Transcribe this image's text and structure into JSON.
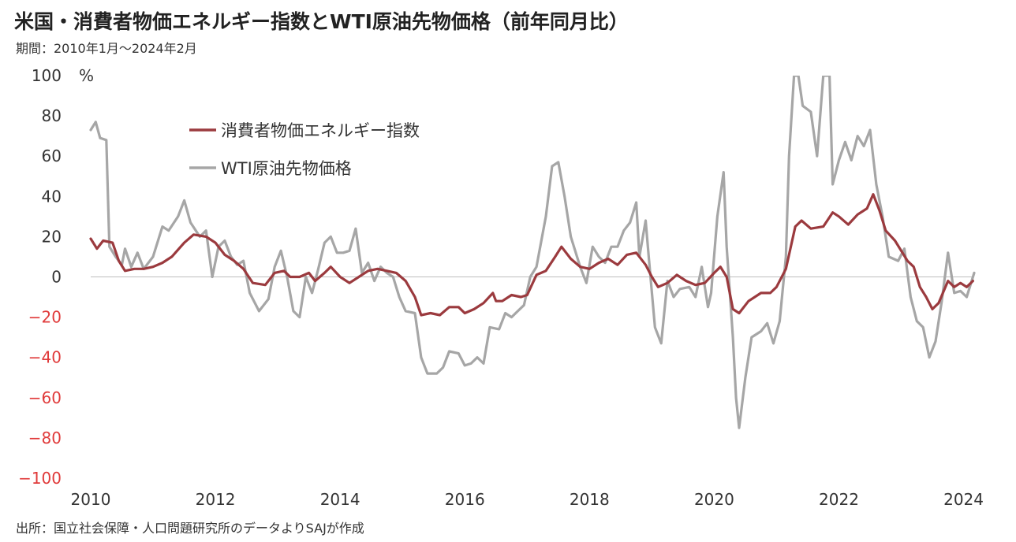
{
  "header": {
    "title": "米国・消費者物価エネルギー指数とWTI原油先物価格（前年同月比）",
    "subtitle": "期間：2010年1月～2024年2月"
  },
  "footer": {
    "source": "出所：国立社会保障・人口問題研究所のデータよりSAJが作成"
  },
  "colors": {
    "cpi_energy": "#9b3a3e",
    "wti": "#a6a6a6",
    "negative_tick": "#e03a3a",
    "positive_tick": "#333333",
    "zero_line": "#bdbdbd"
  },
  "chart_data": {
    "type": "line",
    "title": "米国・消費者物価エネルギー指数とWTI原油先物価格（前年同月比）",
    "xlabel": "",
    "ylabel": "",
    "y_unit": "%",
    "ylim": [
      -100,
      100
    ],
    "y_ticks": [
      100,
      80,
      60,
      40,
      20,
      0,
      -20,
      -40,
      -60,
      -80,
      -100
    ],
    "x_ticks": [
      "2010",
      "2012",
      "2014",
      "2016",
      "2018",
      "2020",
      "2022",
      "2024"
    ],
    "xlim": [
      2010.0,
      2024.17
    ],
    "grid": false,
    "legend_position": "top-left",
    "series": [
      {
        "name": "消費者物価エネルギー指数",
        "color": "#9b3a3e",
        "points": [
          [
            2010.0,
            19
          ],
          [
            2010.1,
            14
          ],
          [
            2010.2,
            18
          ],
          [
            2010.35,
            17
          ],
          [
            2010.45,
            8
          ],
          [
            2010.55,
            3
          ],
          [
            2010.7,
            4
          ],
          [
            2010.85,
            4
          ],
          [
            2011.0,
            5
          ],
          [
            2011.15,
            7
          ],
          [
            2011.3,
            10
          ],
          [
            2011.5,
            17
          ],
          [
            2011.65,
            21
          ],
          [
            2011.85,
            20
          ],
          [
            2012.0,
            17
          ],
          [
            2012.15,
            11
          ],
          [
            2012.3,
            8
          ],
          [
            2012.45,
            4
          ],
          [
            2012.6,
            -3
          ],
          [
            2012.8,
            -4
          ],
          [
            2012.95,
            2
          ],
          [
            2013.1,
            3
          ],
          [
            2013.2,
            0
          ],
          [
            2013.35,
            0
          ],
          [
            2013.5,
            2
          ],
          [
            2013.6,
            -2
          ],
          [
            2013.75,
            2
          ],
          [
            2013.85,
            5
          ],
          [
            2014.0,
            0
          ],
          [
            2014.15,
            -3
          ],
          [
            2014.3,
            0
          ],
          [
            2014.45,
            3
          ],
          [
            2014.6,
            4
          ],
          [
            2014.75,
            3
          ],
          [
            2014.9,
            2
          ],
          [
            2015.05,
            -2
          ],
          [
            2015.2,
            -10
          ],
          [
            2015.3,
            -19
          ],
          [
            2015.45,
            -18
          ],
          [
            2015.6,
            -19
          ],
          [
            2015.75,
            -15
          ],
          [
            2015.9,
            -15
          ],
          [
            2016.0,
            -18
          ],
          [
            2016.15,
            -16
          ],
          [
            2016.3,
            -13
          ],
          [
            2016.45,
            -8
          ],
          [
            2016.5,
            -12
          ],
          [
            2016.6,
            -12
          ],
          [
            2016.75,
            -9
          ],
          [
            2016.9,
            -10
          ],
          [
            2017.0,
            -9
          ],
          [
            2017.15,
            1
          ],
          [
            2017.3,
            3
          ],
          [
            2017.45,
            10
          ],
          [
            2017.55,
            15
          ],
          [
            2017.7,
            9
          ],
          [
            2017.85,
            5
          ],
          [
            2018.0,
            4
          ],
          [
            2018.15,
            7
          ],
          [
            2018.3,
            9
          ],
          [
            2018.45,
            6
          ],
          [
            2018.6,
            11
          ],
          [
            2018.75,
            12
          ],
          [
            2018.9,
            6
          ],
          [
            2019.0,
            0
          ],
          [
            2019.1,
            -5
          ],
          [
            2019.25,
            -3
          ],
          [
            2019.4,
            1
          ],
          [
            2019.55,
            -2
          ],
          [
            2019.7,
            -4
          ],
          [
            2019.85,
            -3
          ],
          [
            2020.0,
            2
          ],
          [
            2020.1,
            5
          ],
          [
            2020.2,
            0
          ],
          [
            2020.3,
            -16
          ],
          [
            2020.4,
            -18
          ],
          [
            2020.55,
            -12
          ],
          [
            2020.75,
            -8
          ],
          [
            2020.9,
            -8
          ],
          [
            2021.0,
            -5
          ],
          [
            2021.15,
            4
          ],
          [
            2021.3,
            25
          ],
          [
            2021.4,
            28
          ],
          [
            2021.55,
            24
          ],
          [
            2021.75,
            25
          ],
          [
            2021.9,
            32
          ],
          [
            2022.0,
            30
          ],
          [
            2022.15,
            26
          ],
          [
            2022.3,
            31
          ],
          [
            2022.45,
            34
          ],
          [
            2022.55,
            41
          ],
          [
            2022.65,
            33
          ],
          [
            2022.75,
            23
          ],
          [
            2022.9,
            18
          ],
          [
            2023.0,
            13
          ],
          [
            2023.1,
            8
          ],
          [
            2023.2,
            5
          ],
          [
            2023.3,
            -5
          ],
          [
            2023.4,
            -10
          ],
          [
            2023.5,
            -16
          ],
          [
            2023.6,
            -13
          ],
          [
            2023.75,
            -2
          ],
          [
            2023.85,
            -5
          ],
          [
            2023.95,
            -3
          ],
          [
            2024.05,
            -5
          ],
          [
            2024.15,
            -2
          ]
        ]
      },
      {
        "name": "WTI原油先物価格",
        "color": "#a6a6a6",
        "points": [
          [
            2010.0,
            73
          ],
          [
            2010.08,
            77
          ],
          [
            2010.15,
            69
          ],
          [
            2010.25,
            68
          ],
          [
            2010.3,
            15
          ],
          [
            2010.4,
            10
          ],
          [
            2010.5,
            6
          ],
          [
            2010.55,
            14
          ],
          [
            2010.65,
            5
          ],
          [
            2010.75,
            12
          ],
          [
            2010.85,
            4
          ],
          [
            2011.0,
            10
          ],
          [
            2011.15,
            25
          ],
          [
            2011.25,
            23
          ],
          [
            2011.4,
            30
          ],
          [
            2011.5,
            38
          ],
          [
            2011.6,
            27
          ],
          [
            2011.75,
            20
          ],
          [
            2011.85,
            23
          ],
          [
            2011.95,
            0
          ],
          [
            2012.05,
            15
          ],
          [
            2012.15,
            18
          ],
          [
            2012.25,
            10
          ],
          [
            2012.35,
            6
          ],
          [
            2012.45,
            8
          ],
          [
            2012.55,
            -8
          ],
          [
            2012.7,
            -17
          ],
          [
            2012.85,
            -11
          ],
          [
            2012.95,
            5
          ],
          [
            2013.05,
            13
          ],
          [
            2013.15,
            0
          ],
          [
            2013.25,
            -17
          ],
          [
            2013.35,
            -20
          ],
          [
            2013.45,
            0
          ],
          [
            2013.55,
            -8
          ],
          [
            2013.65,
            4
          ],
          [
            2013.75,
            17
          ],
          [
            2013.85,
            20
          ],
          [
            2013.95,
            12
          ],
          [
            2014.05,
            12
          ],
          [
            2014.15,
            13
          ],
          [
            2014.25,
            24
          ],
          [
            2014.35,
            2
          ],
          [
            2014.45,
            7
          ],
          [
            2014.55,
            -2
          ],
          [
            2014.65,
            5
          ],
          [
            2014.75,
            2
          ],
          [
            2014.85,
            0
          ],
          [
            2014.95,
            -10
          ],
          [
            2015.05,
            -17
          ],
          [
            2015.2,
            -18
          ],
          [
            2015.3,
            -40
          ],
          [
            2015.4,
            -48
          ],
          [
            2015.55,
            -48
          ],
          [
            2015.65,
            -45
          ],
          [
            2015.75,
            -37
          ],
          [
            2015.9,
            -38
          ],
          [
            2016.0,
            -44
          ],
          [
            2016.1,
            -43
          ],
          [
            2016.2,
            -40
          ],
          [
            2016.3,
            -43
          ],
          [
            2016.4,
            -25
          ],
          [
            2016.55,
            -26
          ],
          [
            2016.65,
            -18
          ],
          [
            2016.75,
            -20
          ],
          [
            2016.85,
            -17
          ],
          [
            2016.95,
            -14
          ],
          [
            2017.05,
            0
          ],
          [
            2017.15,
            5
          ],
          [
            2017.3,
            30
          ],
          [
            2017.4,
            55
          ],
          [
            2017.5,
            57
          ],
          [
            2017.6,
            40
          ],
          [
            2017.7,
            20
          ],
          [
            2017.85,
            5
          ],
          [
            2017.95,
            -3
          ],
          [
            2018.05,
            15
          ],
          [
            2018.15,
            10
          ],
          [
            2018.25,
            7
          ],
          [
            2018.35,
            15
          ],
          [
            2018.45,
            15
          ],
          [
            2018.55,
            23
          ],
          [
            2018.65,
            27
          ],
          [
            2018.75,
            37
          ],
          [
            2018.8,
            10
          ],
          [
            2018.9,
            28
          ],
          [
            2018.95,
            10
          ],
          [
            2019.05,
            -25
          ],
          [
            2019.15,
            -33
          ],
          [
            2019.25,
            -2
          ],
          [
            2019.35,
            -10
          ],
          [
            2019.45,
            -6
          ],
          [
            2019.6,
            -5
          ],
          [
            2019.7,
            -10
          ],
          [
            2019.8,
            5
          ],
          [
            2019.9,
            -15
          ],
          [
            2019.95,
            -8
          ],
          [
            2020.05,
            30
          ],
          [
            2020.15,
            52
          ],
          [
            2020.2,
            15
          ],
          [
            2020.3,
            -30
          ],
          [
            2020.35,
            -60
          ],
          [
            2020.4,
            -75
          ],
          [
            2020.5,
            -50
          ],
          [
            2020.6,
            -30
          ],
          [
            2020.75,
            -27
          ],
          [
            2020.85,
            -23
          ],
          [
            2020.95,
            -33
          ],
          [
            2021.05,
            -22
          ],
          [
            2021.15,
            10
          ],
          [
            2021.2,
            60
          ],
          [
            2021.28,
            100
          ],
          [
            2021.35,
            100
          ],
          [
            2021.42,
            85
          ],
          [
            2021.55,
            82
          ],
          [
            2021.65,
            60
          ],
          [
            2021.75,
            100
          ],
          [
            2021.85,
            100
          ],
          [
            2021.9,
            46
          ],
          [
            2022.0,
            58
          ],
          [
            2022.1,
            67
          ],
          [
            2022.2,
            58
          ],
          [
            2022.3,
            70
          ],
          [
            2022.4,
            65
          ],
          [
            2022.5,
            73
          ],
          [
            2022.6,
            46
          ],
          [
            2022.7,
            30
          ],
          [
            2022.8,
            10
          ],
          [
            2022.95,
            8
          ],
          [
            2023.05,
            14
          ],
          [
            2023.15,
            -10
          ],
          [
            2023.25,
            -22
          ],
          [
            2023.35,
            -25
          ],
          [
            2023.45,
            -40
          ],
          [
            2023.55,
            -32
          ],
          [
            2023.65,
            -12
          ],
          [
            2023.75,
            12
          ],
          [
            2023.85,
            -8
          ],
          [
            2023.95,
            -7
          ],
          [
            2024.05,
            -10
          ],
          [
            2024.17,
            2
          ]
        ]
      }
    ]
  }
}
